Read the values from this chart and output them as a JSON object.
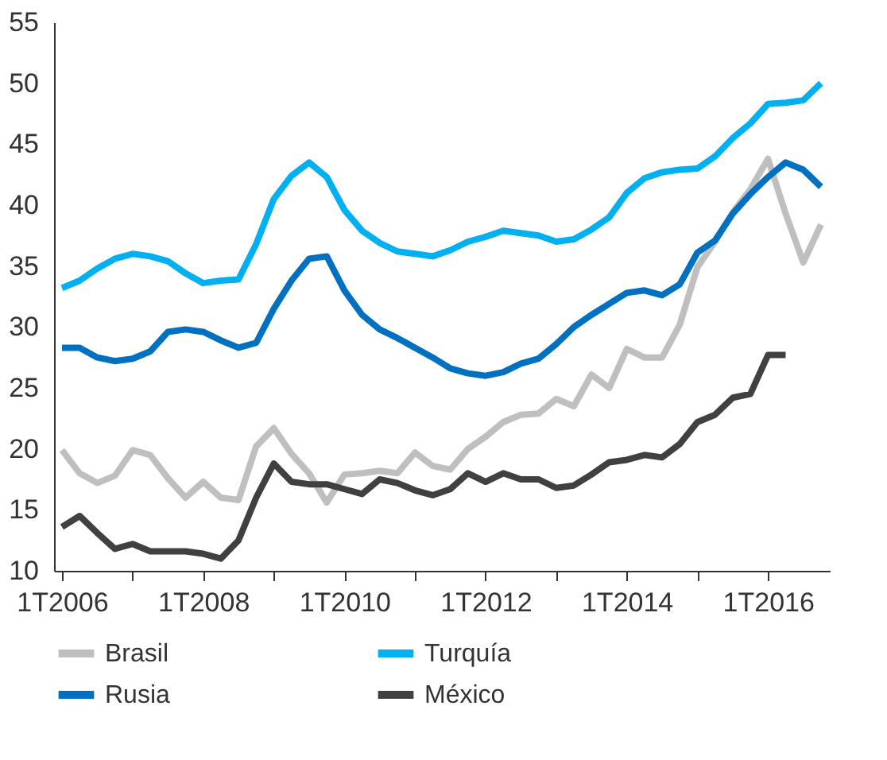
{
  "chart_data": {
    "type": "line",
    "categories": [
      "1T2006",
      null,
      null,
      null,
      null,
      null,
      null,
      null,
      "1T2008",
      null,
      null,
      null,
      null,
      null,
      null,
      null,
      "1T2010",
      null,
      null,
      null,
      null,
      null,
      null,
      null,
      "1T2012",
      null,
      null,
      null,
      null,
      null,
      null,
      null,
      "1T2014",
      null,
      null,
      null,
      null,
      null,
      null,
      null,
      "1T2016",
      null,
      null,
      null
    ],
    "ylim": [
      10,
      55
    ],
    "yticks": [
      10,
      15,
      20,
      25,
      30,
      35,
      40,
      45,
      50,
      55
    ],
    "grid": false,
    "legend": "bottom",
    "marker": "none",
    "line_style": "solid",
    "series": [
      {
        "name": "Brasil",
        "color": "#bfbfbf",
        "values": [
          19.9,
          18.0,
          17.2,
          17.8,
          19.9,
          19.5,
          17.6,
          16.0,
          17.3,
          16.0,
          15.8,
          20.2,
          21.7,
          19.6,
          18.0,
          15.6,
          17.9,
          18.0,
          18.2,
          18.0,
          19.7,
          18.6,
          18.3,
          20.0,
          21.0,
          22.2,
          22.8,
          22.9,
          24.1,
          23.5,
          26.1,
          25.0,
          28.2,
          27.5,
          27.5,
          30.2,
          34.9,
          37.0,
          39.4,
          41.3,
          43.8,
          39.3,
          35.3,
          38.4
        ]
      },
      {
        "name": "Turquía",
        "color": "#00b0f0",
        "values": [
          33.2,
          33.8,
          34.8,
          35.6,
          36.0,
          35.8,
          35.4,
          34.4,
          33.6,
          33.8,
          33.9,
          36.8,
          40.5,
          42.4,
          43.5,
          42.3,
          39.6,
          37.9,
          36.9,
          36.2,
          36.0,
          35.8,
          36.3,
          37.0,
          37.4,
          37.9,
          37.7,
          37.5,
          37.0,
          37.2,
          38.0,
          39.0,
          41.0,
          42.2,
          42.7,
          42.9,
          43.0,
          44.0,
          45.5,
          46.7,
          48.3,
          48.4,
          48.6,
          50.0
        ]
      },
      {
        "name": "Rusia",
        "color": "#0070c0",
        "values": [
          28.3,
          28.3,
          27.5,
          27.2,
          27.4,
          28.0,
          29.6,
          29.8,
          29.6,
          28.9,
          28.3,
          28.7,
          31.5,
          33.8,
          35.6,
          35.8,
          33.0,
          31.0,
          29.8,
          29.1,
          28.3,
          27.5,
          26.6,
          26.2,
          26.0,
          26.3,
          27.0,
          27.4,
          28.6,
          30.0,
          31.0,
          31.9,
          32.8,
          33.0,
          32.6,
          33.5,
          36.1,
          37.1,
          39.3,
          40.9,
          42.3,
          43.5,
          42.9,
          41.5
        ]
      },
      {
        "name": "México",
        "color": "#404040",
        "values": [
          13.6,
          14.5,
          13.1,
          11.8,
          12.2,
          11.6,
          11.6,
          11.6,
          11.4,
          11.0,
          12.5,
          16.0,
          18.8,
          17.3,
          17.1,
          17.1,
          16.7,
          16.3,
          17.5,
          17.2,
          16.6,
          16.2,
          16.7,
          18.0,
          17.3,
          18.0,
          17.5,
          17.5,
          16.8,
          17.0,
          17.9,
          18.9,
          19.1,
          19.5,
          19.3,
          20.4,
          22.2,
          22.8,
          24.2,
          24.5,
          27.7,
          27.7,
          null,
          null
        ]
      }
    ]
  }
}
